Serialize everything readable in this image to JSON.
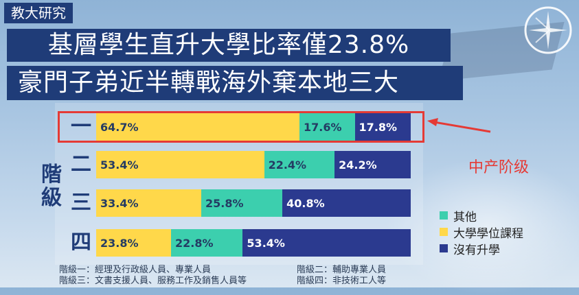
{
  "header": {
    "tag": "教大研究",
    "headline1": "基層學生直升大學比率僅23.8%",
    "headline2": "豪門子弟近半轉戰海外棄本地三大"
  },
  "chart_data": {
    "type": "bar",
    "orientation": "horizontal",
    "stacked": true,
    "normalized": true,
    "axis_label": "階級",
    "categories": [
      "一",
      "二",
      "三",
      "四"
    ],
    "series": [
      {
        "name": "大學學位課程",
        "color": "#ffd84a",
        "values": [
          64.7,
          53.4,
          33.4,
          23.8
        ]
      },
      {
        "name": "其他",
        "color": "#3ccfae",
        "values": [
          17.6,
          22.4,
          25.8,
          22.8
        ]
      },
      {
        "name": "沒有升學",
        "color": "#2b3a8f",
        "values": [
          17.8,
          24.2,
          40.8,
          53.4
        ]
      }
    ],
    "labels": [
      [
        "64.7%",
        "17.6%",
        "17.8%"
      ],
      [
        "53.4%",
        "22.4%",
        "24.2%"
      ],
      [
        "33.4%",
        "25.8%",
        "40.8%"
      ],
      [
        "23.8%",
        "22.8%",
        "53.4%"
      ]
    ],
    "legend": {
      "position": "right",
      "items": [
        {
          "label": "其他",
          "color": "#3ccfae"
        },
        {
          "label": "大學學位課程",
          "color": "#ffd84a"
        },
        {
          "label": "沒有升學",
          "color": "#2b3a8f"
        }
      ]
    }
  },
  "annotation": {
    "text": "中产阶级",
    "color": "#e53a35"
  },
  "footnotes": {
    "left1": "階級一：經理及行政級人員、專業人員",
    "right1": "階級二：輔助專業人員",
    "left2": "階級三：文書支援人員、服務工作及銷售人員等",
    "right2": "階級四：非技術工人等"
  }
}
